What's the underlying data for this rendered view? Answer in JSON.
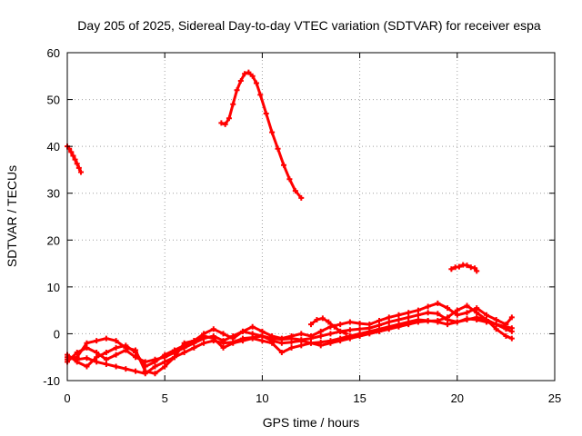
{
  "chart_data": {
    "type": "scatter",
    "title": "Day 205 of 2025, Sidereal Day-to-day VTEC variation (SDTVAR) for receiver espa",
    "xlabel": "GPS time / hours",
    "ylabel": "SDTVAR / TECUs",
    "xlim": [
      0,
      25
    ],
    "ylim": [
      -10,
      60
    ],
    "xticks": [
      "0",
      "5",
      "10",
      "15",
      "20",
      "25"
    ],
    "yticks": [
      "-10",
      "0",
      "10",
      "20",
      "30",
      "40",
      "50",
      "60"
    ],
    "grid": true,
    "legend": "none",
    "series": [
      {
        "name": "arc-1",
        "color": "#ff0000",
        "x": [
          0.0,
          0.1,
          0.2,
          0.3,
          0.4,
          0.5,
          0.6,
          0.7
        ],
        "y": [
          40,
          39.5,
          38.8,
          38,
          37.2,
          36.3,
          35.4,
          34.5
        ]
      },
      {
        "name": "arc-2",
        "color": "#ff0000",
        "x": [
          7.9,
          8.1,
          8.3,
          8.5,
          8.7,
          8.9,
          9.1,
          9.3,
          9.5,
          9.7,
          9.9,
          10.2,
          10.5,
          10.8,
          11.1,
          11.4,
          11.7,
          12.0
        ],
        "y": [
          45,
          44.7,
          46,
          49,
          52,
          54,
          55.5,
          55.8,
          55,
          53.5,
          51,
          47,
          43,
          39.5,
          36,
          33,
          30.5,
          29
        ]
      },
      {
        "name": "arc-3",
        "color": "#ff0000",
        "x": [
          19.7,
          19.9,
          20.1,
          20.3,
          20.5,
          20.7,
          20.9,
          21.0
        ],
        "y": [
          13.8,
          14.2,
          14.3,
          14.7,
          14.6,
          14.2,
          14.0,
          13.4
        ]
      },
      {
        "name": "trace-a",
        "color": "#ff0000",
        "x": [
          0,
          0.5,
          1,
          1.5,
          2,
          2.5,
          3,
          3.5,
          4,
          4.5,
          5,
          5.5,
          6,
          6.5,
          7,
          7.5,
          8,
          8.5,
          9,
          9.5,
          10,
          10.5,
          11,
          11.5,
          12,
          12.5,
          13,
          13.5,
          14,
          14.5,
          15,
          15.5,
          16,
          16.5,
          17,
          17.5,
          18,
          18.5,
          19,
          19.5,
          20,
          20.5,
          21,
          21.5,
          22,
          22.5,
          22.8
        ],
        "y": [
          -5,
          -5.5,
          -5.2,
          -6,
          -6.5,
          -7,
          -7.5,
          -8,
          -8.5,
          -7,
          -6,
          -5,
          -4,
          -3,
          -2,
          -1.5,
          -2,
          -1.8,
          -1,
          -0.8,
          -0.5,
          -1,
          -1.2,
          -1,
          -1.3,
          -1,
          -0.5,
          0,
          0.5,
          0.8,
          1,
          1.2,
          1.8,
          2.5,
          3,
          3.5,
          4,
          4.5,
          4.3,
          3,
          2.5,
          3.2,
          3,
          2.5,
          2,
          1.5,
          1.2
        ]
      },
      {
        "name": "trace-b",
        "color": "#ff0000",
        "x": [
          0,
          0.5,
          1,
          1.5,
          2,
          2.5,
          3,
          3.5,
          4,
          4.5,
          5,
          5.5,
          6,
          6.5,
          7,
          7.5,
          8,
          8.5,
          9,
          9.5,
          10,
          10.5,
          11,
          11.5,
          12,
          12.5,
          13,
          13.5,
          14,
          14.5,
          15,
          15.5,
          16,
          16.5,
          17,
          17.5,
          18,
          18.5,
          19,
          19.5,
          20,
          20.5,
          21,
          21.5,
          22,
          22.5,
          22.8
        ],
        "y": [
          -6,
          -4,
          -3,
          -4,
          -5.5,
          -4.5,
          -3.5,
          -5,
          -6,
          -5.5,
          -5,
          -4,
          -3,
          -2,
          -1,
          -0.5,
          -1.5,
          -0.5,
          0.5,
          0,
          -0.5,
          -1.5,
          -2,
          -1.8,
          -1.5,
          -2,
          -1.8,
          -1.5,
          -1,
          -0.5,
          0,
          0.5,
          1,
          1.5,
          2,
          2.5,
          3,
          2.8,
          2.5,
          2,
          2.5,
          3,
          3.5,
          3,
          2,
          1,
          0.5
        ]
      },
      {
        "name": "trace-c",
        "color": "#ff0000",
        "x": [
          0,
          0.5,
          1,
          1.5,
          2,
          2.5,
          3,
          3.5,
          4,
          4.5,
          5,
          5.5,
          6,
          6.5,
          7,
          7.5,
          8,
          8.5,
          9,
          9.5,
          10,
          10.5,
          11,
          11.5,
          12,
          12.5,
          13,
          13.5,
          14,
          14.5,
          15,
          15.5,
          16,
          16.5,
          17,
          17.5,
          18,
          18.5,
          19,
          19.5,
          20,
          20.5,
          21,
          21.5,
          22,
          22.5,
          22.8
        ],
        "y": [
          -4.5,
          -6,
          -7,
          -5,
          -4,
          -3,
          -2.5,
          -4,
          -7,
          -6,
          -4.5,
          -3.5,
          -2.5,
          -1.5,
          0,
          1,
          0,
          -1,
          0.5,
          1.5,
          0.5,
          -0.5,
          -1,
          -0.5,
          0,
          -0.5,
          0.5,
          1.5,
          2,
          2.5,
          2.2,
          2,
          2.8,
          3.5,
          4,
          4.5,
          5,
          5.8,
          6.5,
          5.5,
          4,
          4.5,
          5.5,
          4,
          3,
          2,
          3.5
        ]
      },
      {
        "name": "trace-d",
        "color": "#ff0000",
        "x": [
          0,
          0.5,
          1,
          1.5,
          2,
          2.5,
          3,
          3.5,
          4,
          4.5,
          5,
          5.5,
          6,
          6.5,
          7,
          7.5,
          8,
          8.5,
          9,
          9.5,
          10,
          10.5,
          11,
          11.5,
          12,
          12.5,
          13,
          13.5,
          14,
          14.5,
          15,
          15.5,
          16,
          16.5,
          17,
          17.5,
          18,
          18.5,
          19,
          19.5,
          20,
          20.5,
          21,
          21.5,
          22,
          22.5,
          22.8
        ],
        "y": [
          -5.5,
          -5,
          -2,
          -1.5,
          -1,
          -1.5,
          -3,
          -3.5,
          -8,
          -8.5,
          -7,
          -5,
          -2,
          -1.5,
          -0.5,
          -1,
          -3,
          -2,
          -1.5,
          -1,
          -1.5,
          -2,
          -4,
          -3,
          -2.5,
          -2,
          -2.5,
          -2,
          -1.5,
          -1,
          -0.5,
          0,
          0.5,
          1,
          1.5,
          2,
          2.5,
          2.7,
          2.8,
          3.5,
          5,
          6,
          4.5,
          3,
          1,
          -0.5,
          -1
        ]
      },
      {
        "name": "trace-e",
        "color": "#ff0000",
        "x": [
          12.5,
          12.8,
          13.1,
          13.4,
          13.7,
          14.0,
          14.3
        ],
        "y": [
          2,
          3,
          3.3,
          2.5,
          1.5,
          0.5,
          0
        ]
      }
    ]
  }
}
